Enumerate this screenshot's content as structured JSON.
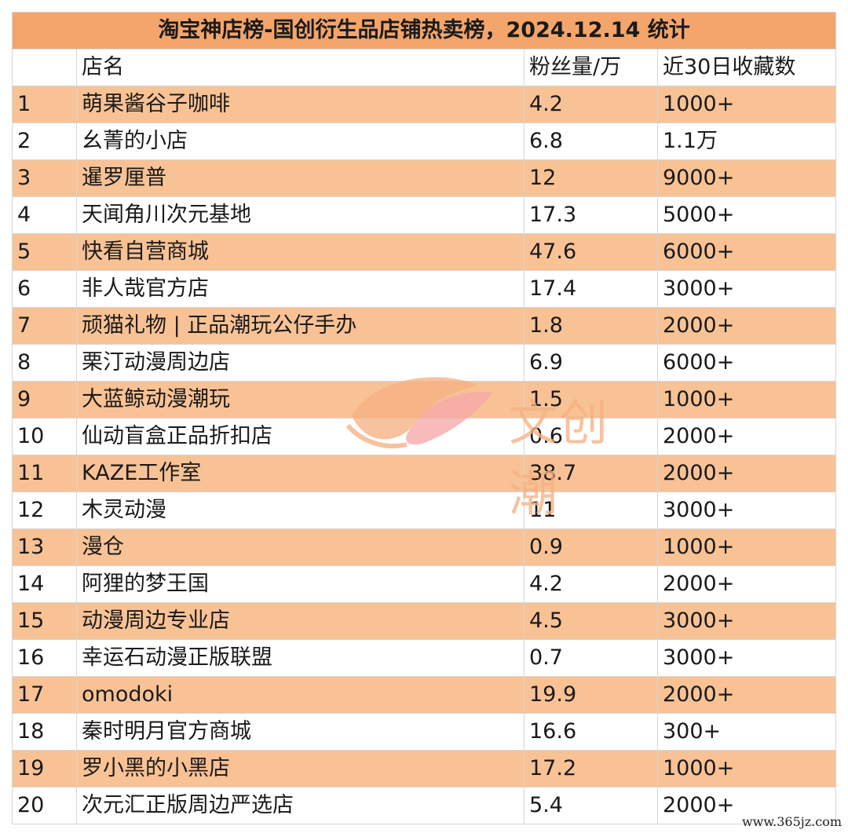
{
  "title": "淘宝神店榜-国创衍生品店铺热卖榜，2024.12.14 统计",
  "headers": [
    "",
    "店名",
    "粉丝量/万",
    "近30日收藏数"
  ],
  "rows": [
    [
      "1",
      "萌果酱谷子咖啡",
      "4.2",
      "1000+"
    ],
    [
      "2",
      "幺菁的小店",
      "6.8",
      "1.1万"
    ],
    [
      "3",
      "暹罗厘普",
      "12",
      "9000+"
    ],
    [
      "4",
      "天闻角川次元基地",
      "17.3",
      "5000+"
    ],
    [
      "5",
      "快看自营商城",
      "47.6",
      "6000+"
    ],
    [
      "6",
      "非人哉官方店",
      "17.4",
      "3000+"
    ],
    [
      "7",
      "顽猫礼物 | 正品潮玩公仔手办",
      "1.8",
      "2000+"
    ],
    [
      "8",
      "栗汀动漫周边店",
      "6.9",
      "6000+"
    ],
    [
      "9",
      "大蓝鲸动漫潮玩",
      "1.5",
      "1000+"
    ],
    [
      "10",
      "仙动盲盒正品折扣店",
      "0.6",
      "2000+"
    ],
    [
      "11",
      "KAZE工作室",
      "38.7",
      "2000+"
    ],
    [
      "12",
      "木灵动漫",
      "11",
      "3000+"
    ],
    [
      "13",
      "漫仓",
      "0.9",
      "1000+"
    ],
    [
      "14",
      "阿狸的梦王国",
      "4.2",
      "2000+"
    ],
    [
      "15",
      "动漫周边专业店",
      "4.5",
      "3000+"
    ],
    [
      "16",
      "幸运石动漫正版联盟",
      "0.7",
      "3000+"
    ],
    [
      "17",
      "omodoki",
      "19.9",
      "2000+"
    ],
    [
      "18",
      "秦时明月官方商城",
      "16.6",
      "300+"
    ],
    [
      "19",
      "罗小黑的小黑店",
      "17.2",
      "1000+"
    ],
    [
      "20",
      "次元汇正版周边严选店",
      "5.4",
      "2000+"
    ]
  ],
  "watermark": {
    "text": "文创潮",
    "icon": "brush-stroke-logo-icon"
  },
  "site": "www.365jz.com",
  "colors": {
    "title_bg": "#f4a56b",
    "stripe": "#f8c295",
    "border": "#d6d6d6"
  }
}
